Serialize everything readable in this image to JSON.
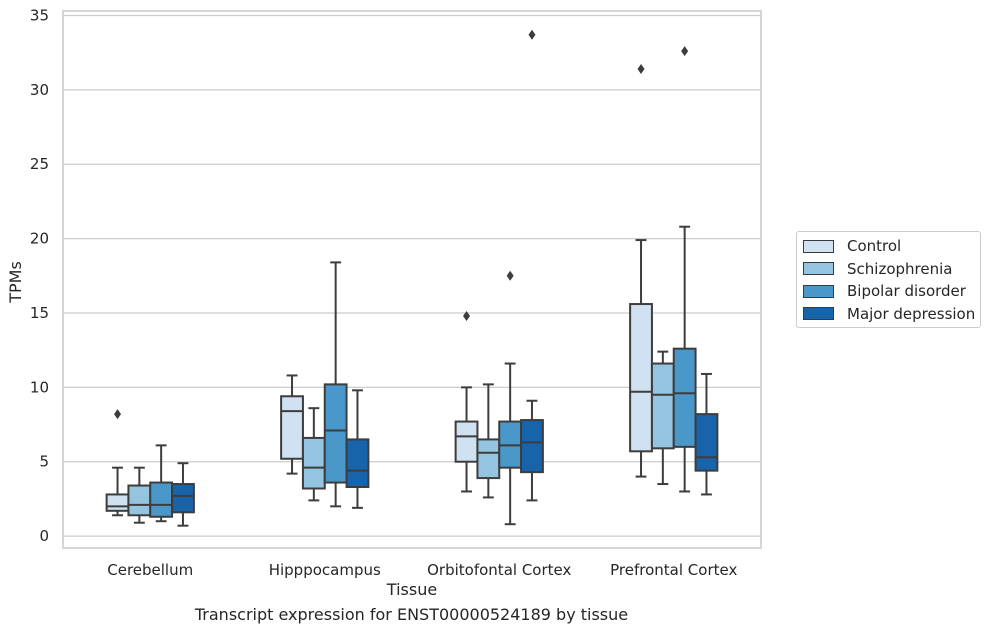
{
  "chart_data": {
    "type": "box",
    "caption": "Transcript expression for ENST00000524189 by tissue",
    "xlabel": "Tissue",
    "ylabel": "TPMs",
    "ylim": [
      -0.8,
      35.3
    ],
    "yticks": [
      0,
      5,
      10,
      15,
      20,
      25,
      30,
      35
    ],
    "grid": true,
    "legend_position": "right",
    "categories": [
      "Cerebellum",
      "Hipppocampus",
      "Orbitofontal Cortex",
      "Prefrontal Cortex"
    ],
    "series": [
      {
        "name": "Control",
        "color": "#d0e1f2",
        "boxes": [
          {
            "whislo": 1.4,
            "q1": 1.7,
            "med": 2.0,
            "q3": 2.8,
            "whishi": 4.6,
            "fliers": [
              8.2
            ]
          },
          {
            "whislo": 4.2,
            "q1": 5.2,
            "med": 8.4,
            "q3": 9.4,
            "whishi": 10.8,
            "fliers": []
          },
          {
            "whislo": 3.0,
            "q1": 5.0,
            "med": 6.7,
            "q3": 7.7,
            "whishi": 10.0,
            "fliers": [
              14.8
            ]
          },
          {
            "whislo": 4.0,
            "q1": 5.7,
            "med": 9.7,
            "q3": 15.6,
            "whishi": 19.9,
            "fliers": [
              31.4
            ]
          }
        ]
      },
      {
        "name": "Schizophrenia",
        "color": "#94c4df",
        "boxes": [
          {
            "whislo": 0.9,
            "q1": 1.4,
            "med": 2.1,
            "q3": 3.4,
            "whishi": 4.6,
            "fliers": []
          },
          {
            "whislo": 2.4,
            "q1": 3.2,
            "med": 4.6,
            "q3": 6.6,
            "whishi": 8.6,
            "fliers": []
          },
          {
            "whislo": 2.6,
            "q1": 3.9,
            "med": 5.6,
            "q3": 6.5,
            "whishi": 10.2,
            "fliers": []
          },
          {
            "whislo": 3.5,
            "q1": 5.9,
            "med": 9.5,
            "q3": 11.6,
            "whishi": 12.4,
            "fliers": []
          }
        ]
      },
      {
        "name": "Bipolar disorder",
        "color": "#4a98c9",
        "boxes": [
          {
            "whislo": 1.0,
            "q1": 1.3,
            "med": 2.1,
            "q3": 3.6,
            "whishi": 6.1,
            "fliers": []
          },
          {
            "whislo": 2.0,
            "q1": 3.6,
            "med": 7.1,
            "q3": 10.2,
            "whishi": 18.4,
            "fliers": []
          },
          {
            "whislo": 0.8,
            "q1": 4.6,
            "med": 6.1,
            "q3": 7.7,
            "whishi": 11.6,
            "fliers": [
              17.5
            ]
          },
          {
            "whislo": 3.0,
            "q1": 6.0,
            "med": 9.6,
            "q3": 12.6,
            "whishi": 20.8,
            "fliers": [
              32.6
            ]
          }
        ]
      },
      {
        "name": "Major depression",
        "color": "#1764ab",
        "boxes": [
          {
            "whislo": 0.7,
            "q1": 1.6,
            "med": 2.7,
            "q3": 3.5,
            "whishi": 4.9,
            "fliers": []
          },
          {
            "whislo": 1.9,
            "q1": 3.3,
            "med": 4.4,
            "q3": 6.5,
            "whishi": 9.8,
            "fliers": []
          },
          {
            "whislo": 2.4,
            "q1": 4.3,
            "med": 6.3,
            "q3": 7.8,
            "whishi": 9.1,
            "fliers": [
              33.7
            ]
          },
          {
            "whislo": 2.8,
            "q1": 4.4,
            "med": 5.3,
            "q3": 8.2,
            "whishi": 10.9,
            "fliers": []
          }
        ]
      }
    ]
  }
}
